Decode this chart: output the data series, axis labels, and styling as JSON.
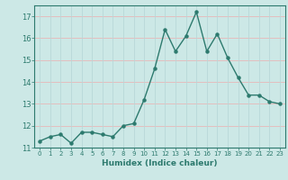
{
  "x": [
    0,
    1,
    2,
    3,
    4,
    5,
    6,
    7,
    8,
    9,
    10,
    11,
    12,
    13,
    14,
    15,
    16,
    17,
    18,
    19,
    20,
    21,
    22,
    23
  ],
  "y": [
    11.3,
    11.5,
    11.6,
    11.2,
    11.7,
    11.7,
    11.6,
    11.5,
    12.0,
    12.1,
    13.2,
    14.6,
    16.4,
    15.4,
    16.1,
    17.2,
    15.4,
    16.2,
    15.1,
    14.2,
    13.4,
    13.4,
    13.1,
    13.0
  ],
  "line_color": "#2d7a6e",
  "bg_color": "#cce8e6",
  "grid_color_h": "#e8b8b8",
  "grid_color_v": "#b8d8d8",
  "xlabel": "Humidex (Indice chaleur)",
  "ylim": [
    11,
    17.5
  ],
  "xlim": [
    -0.5,
    23.5
  ],
  "yticks": [
    11,
    12,
    13,
    14,
    15,
    16,
    17
  ],
  "xticks": [
    0,
    1,
    2,
    3,
    4,
    5,
    6,
    7,
    8,
    9,
    10,
    11,
    12,
    13,
    14,
    15,
    16,
    17,
    18,
    19,
    20,
    21,
    22,
    23
  ]
}
